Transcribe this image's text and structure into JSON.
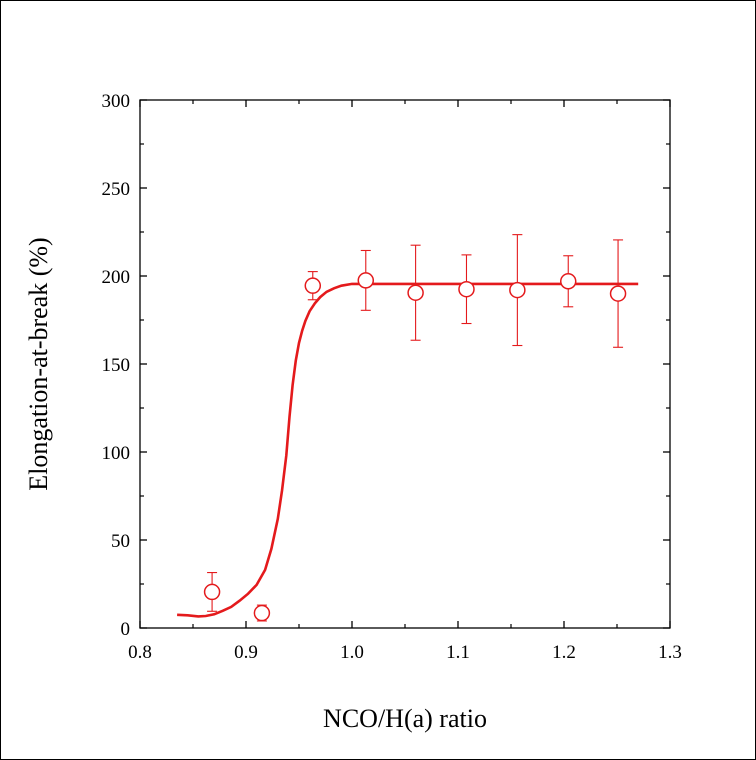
{
  "chart_data": {
    "type": "scatter",
    "title": "",
    "xlabel": "NCO/H(a) ratio",
    "ylabel": "Elongation-at-break (%)",
    "xlim": [
      0.8,
      1.3
    ],
    "ylim": [
      0,
      300
    ],
    "xticks": [
      0.8,
      0.9,
      1.0,
      1.1,
      1.2,
      1.3
    ],
    "xtick_labels": [
      "0.8",
      "0.9",
      "1.0",
      "1.1",
      "1.2",
      "1.3"
    ],
    "yticks": [
      0,
      50,
      100,
      150,
      200,
      250,
      300
    ],
    "ytick_labels": [
      "0",
      "50",
      "100",
      "150",
      "200",
      "250",
      "300"
    ],
    "grid": false,
    "color": "#e41a1c",
    "marker": "open-circle",
    "points": [
      {
        "x": 0.868,
        "y": 20.5,
        "err": 11
      },
      {
        "x": 0.915,
        "y": 8.5,
        "err": 4.5
      },
      {
        "x": 0.963,
        "y": 194.5,
        "err": 8
      },
      {
        "x": 1.013,
        "y": 197.5,
        "err": 17
      },
      {
        "x": 1.06,
        "y": 190.5,
        "err": 27
      },
      {
        "x": 1.108,
        "y": 192.5,
        "err": 19.5
      },
      {
        "x": 1.156,
        "y": 192.0,
        "err": 31.5
      },
      {
        "x": 1.204,
        "y": 197.0,
        "err": 14.5
      },
      {
        "x": 1.251,
        "y": 190.0,
        "err": 30.5
      }
    ],
    "fit_curve": {
      "x": [
        0.835,
        0.845,
        0.855,
        0.862,
        0.87,
        0.878,
        0.886,
        0.894,
        0.902,
        0.91,
        0.918,
        0.924,
        0.93,
        0.934,
        0.938,
        0.941,
        0.944,
        0.947,
        0.95,
        0.953,
        0.956,
        0.96,
        0.965,
        0.97,
        0.976,
        0.983,
        0.99,
        1.0,
        1.02,
        1.06,
        1.1,
        1.15,
        1.2,
        1.27
      ],
      "y": [
        7.5,
        7.2,
        6.6,
        6.8,
        7.8,
        9.8,
        12.0,
        15.5,
        19.5,
        24.5,
        33.0,
        45.0,
        62.0,
        78.0,
        98.0,
        120.0,
        138.0,
        152.0,
        162.0,
        169.0,
        174.5,
        180.0,
        184.5,
        188.0,
        191.0,
        193.0,
        194.5,
        195.5,
        195.5,
        195.5,
        195.5,
        195.5,
        195.5,
        195.5
      ]
    }
  }
}
